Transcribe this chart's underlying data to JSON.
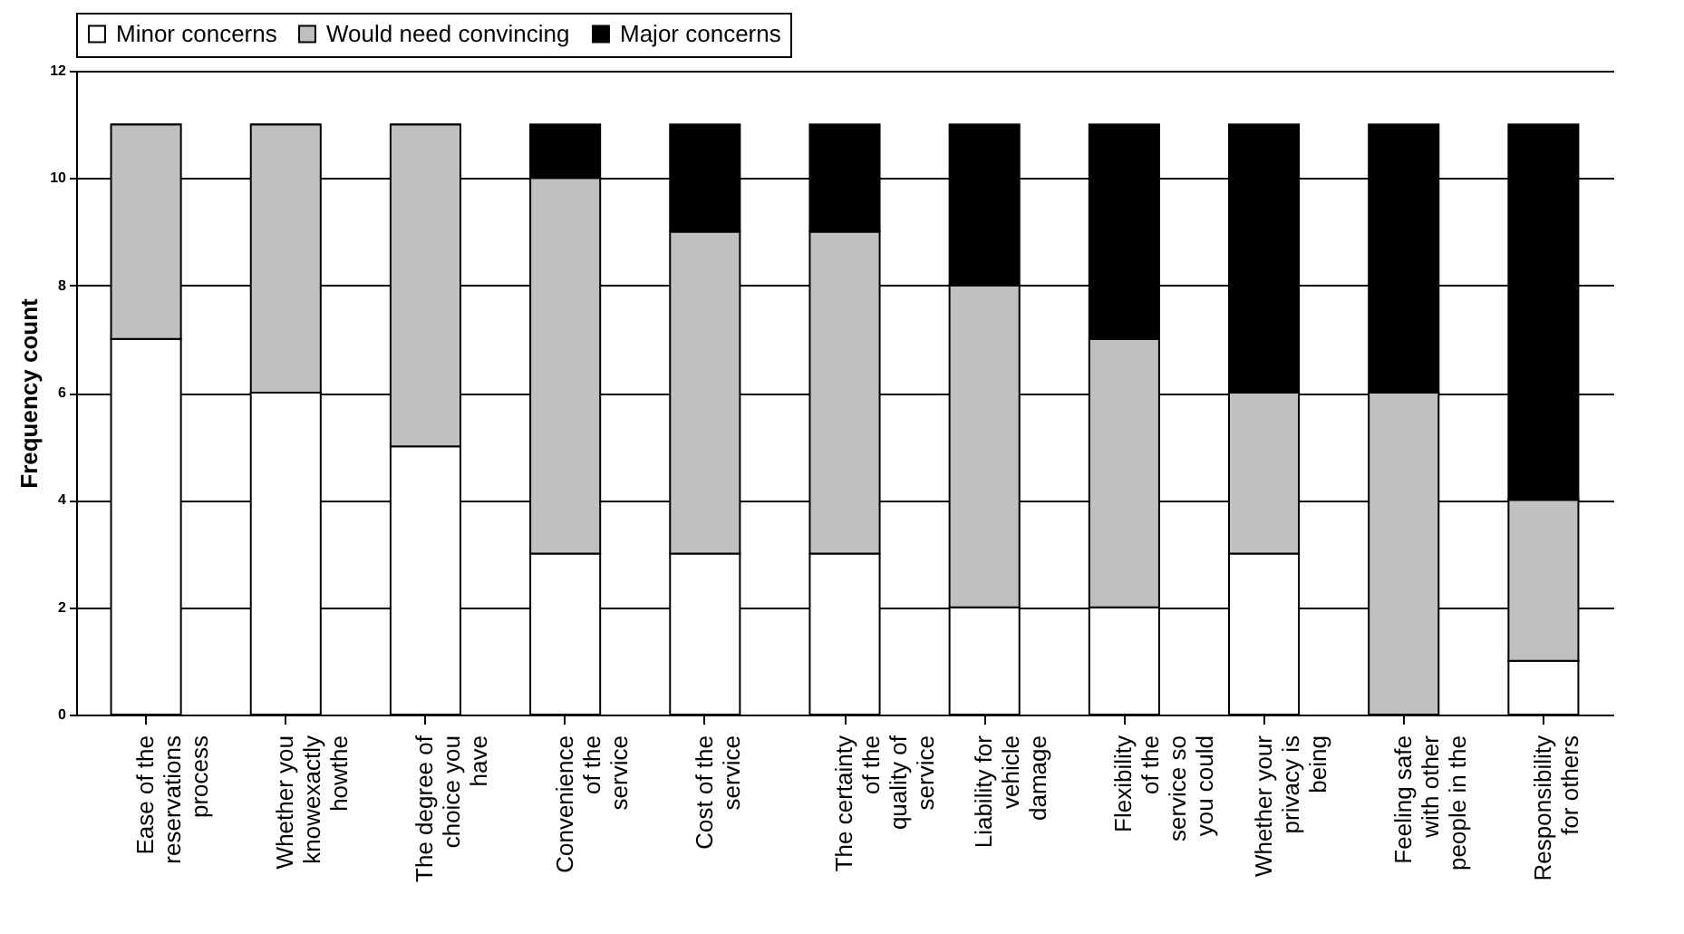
{
  "chart_data": {
    "type": "bar",
    "stacked": true,
    "ylabel": "Frequency count",
    "categories": [
      "Ease of the reservations process",
      "Whether you knowexactly howthe",
      "The degree of choice you have",
      "Convenience of the service",
      "Cost of the service",
      "The certainty of the quality of service",
      "Liability for vehicle damage",
      "Flexibility of the service so you could",
      "Whether your privacy is being",
      "Feeling safe with other people in the",
      "Responsibility for others"
    ],
    "series": [
      {
        "name": "Minor concerns",
        "color": "#ffffff",
        "values": [
          7,
          6,
          5,
          3,
          3,
          3,
          2,
          2,
          3,
          0,
          1
        ]
      },
      {
        "name": "Would need convincing",
        "color": "#c0c0c0",
        "values": [
          4,
          5,
          6,
          7,
          6,
          6,
          6,
          5,
          3,
          6,
          3
        ]
      },
      {
        "name": "Major concerns",
        "color": "#000000",
        "values": [
          0,
          0,
          0,
          1,
          2,
          2,
          3,
          4,
          5,
          5,
          7
        ]
      }
    ],
    "ylim": [
      0,
      12
    ],
    "yticks": [
      0,
      2,
      4,
      6,
      8,
      10,
      12
    ],
    "grid": "y",
    "legend": "top"
  }
}
